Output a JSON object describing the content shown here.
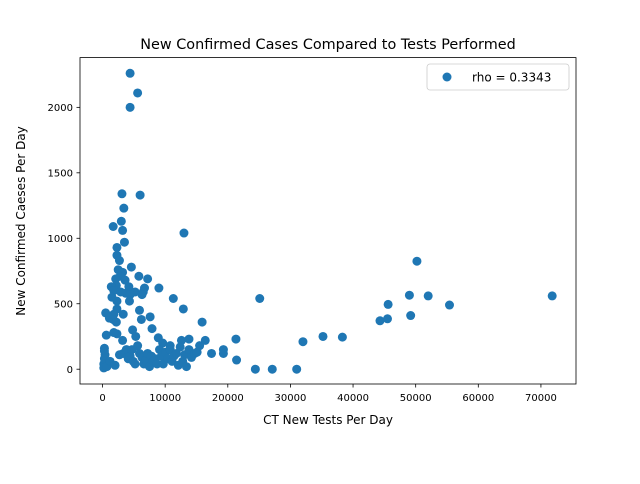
{
  "chart_data": {
    "type": "scatter",
    "title": "New Confirmed Cases Compared to Tests Performed",
    "xlabel": "CT New Tests Per Day",
    "ylabel": "New Confirmed Caeses Per Day",
    "xlim": [
      -3600,
      75600
    ],
    "ylim": [
      -113,
      2380
    ],
    "xticks": [
      0,
      10000,
      20000,
      30000,
      40000,
      50000,
      60000,
      70000
    ],
    "yticks": [
      0,
      500,
      1000,
      1500,
      2000
    ],
    "grid": false,
    "legend_position": "top-right",
    "series": [
      {
        "name": "rho = 0.3343",
        "color": "#1f77b4",
        "points": [
          [
            4400,
            2260
          ],
          [
            5600,
            2110
          ],
          [
            4400,
            2000
          ],
          [
            3100,
            1340
          ],
          [
            6000,
            1330
          ],
          [
            3400,
            1230
          ],
          [
            3000,
            1130
          ],
          [
            1700,
            1090
          ],
          [
            3200,
            1060
          ],
          [
            13000,
            1040
          ],
          [
            3500,
            970
          ],
          [
            2300,
            930
          ],
          [
            2300,
            870
          ],
          [
            2700,
            830
          ],
          [
            4600,
            780
          ],
          [
            2500,
            760
          ],
          [
            3200,
            740
          ],
          [
            5800,
            710
          ],
          [
            2800,
            710
          ],
          [
            7200,
            690
          ],
          [
            2100,
            690
          ],
          [
            3600,
            680
          ],
          [
            2200,
            640
          ],
          [
            4200,
            630
          ],
          [
            1400,
            630
          ],
          [
            6700,
            620
          ],
          [
            9000,
            620
          ],
          [
            1800,
            600
          ],
          [
            6500,
            590
          ],
          [
            5200,
            590
          ],
          [
            2900,
            590
          ],
          [
            3700,
            580
          ],
          [
            4400,
            570
          ],
          [
            6300,
            570
          ],
          [
            1500,
            550
          ],
          [
            11300,
            540
          ],
          [
            2300,
            520
          ],
          [
            4300,
            520
          ],
          [
            2300,
            460
          ],
          [
            5900,
            450
          ],
          [
            12900,
            460
          ],
          [
            1800,
            420
          ],
          [
            3300,
            420
          ],
          [
            7600,
            400
          ],
          [
            500,
            430
          ],
          [
            1100,
            390
          ],
          [
            1700,
            380
          ],
          [
            6200,
            380
          ],
          [
            2200,
            360
          ],
          [
            15900,
            360
          ],
          [
            4800,
            300
          ],
          [
            7900,
            310
          ],
          [
            2300,
            270
          ],
          [
            1800,
            280
          ],
          [
            600,
            260
          ],
          [
            5300,
            250
          ],
          [
            8900,
            240
          ],
          [
            3200,
            220
          ],
          [
            12600,
            220
          ],
          [
            13800,
            230
          ],
          [
            9600,
            200
          ],
          [
            10800,
            180
          ],
          [
            300,
            160
          ],
          [
            300,
            140
          ],
          [
            400,
            110
          ],
          [
            300,
            80
          ],
          [
            200,
            40
          ],
          [
            200,
            10
          ],
          [
            700,
            20
          ],
          [
            1200,
            60
          ],
          [
            2000,
            30
          ],
          [
            2700,
            110
          ],
          [
            3300,
            120
          ],
          [
            3800,
            150
          ],
          [
            4100,
            80
          ],
          [
            4400,
            100
          ],
          [
            4700,
            150
          ],
          [
            4900,
            60
          ],
          [
            5200,
            40
          ],
          [
            5600,
            180
          ],
          [
            5900,
            120
          ],
          [
            6300,
            90
          ],
          [
            6600,
            40
          ],
          [
            6900,
            70
          ],
          [
            7200,
            120
          ],
          [
            7500,
            20
          ],
          [
            7800,
            100
          ],
          [
            8100,
            60
          ],
          [
            8400,
            80
          ],
          [
            8700,
            40
          ],
          [
            9100,
            150
          ],
          [
            9400,
            100
          ],
          [
            9700,
            40
          ],
          [
            10100,
            130
          ],
          [
            10400,
            80
          ],
          [
            10800,
            150
          ],
          [
            11100,
            60
          ],
          [
            11400,
            100
          ],
          [
            11800,
            120
          ],
          [
            12100,
            30
          ],
          [
            12400,
            170
          ],
          [
            12800,
            60
          ],
          [
            13100,
            110
          ],
          [
            13400,
            20
          ],
          [
            13800,
            150
          ],
          [
            14200,
            90
          ],
          [
            14700,
            120
          ],
          [
            15100,
            130
          ],
          [
            15500,
            180
          ],
          [
            16400,
            220
          ],
          [
            17400,
            120
          ],
          [
            19300,
            120
          ],
          [
            19300,
            150
          ],
          [
            21300,
            230
          ],
          [
            21400,
            70
          ],
          [
            24400,
            0
          ],
          [
            25100,
            540
          ],
          [
            27100,
            0
          ],
          [
            31000,
            0
          ],
          [
            32000,
            210
          ],
          [
            35200,
            250
          ],
          [
            38300,
            245
          ],
          [
            44300,
            370
          ],
          [
            45500,
            385
          ],
          [
            45600,
            495
          ],
          [
            49000,
            565
          ],
          [
            49200,
            410
          ],
          [
            50200,
            825
          ],
          [
            52000,
            560
          ],
          [
            55400,
            490
          ],
          [
            71800,
            560
          ]
        ]
      }
    ]
  }
}
